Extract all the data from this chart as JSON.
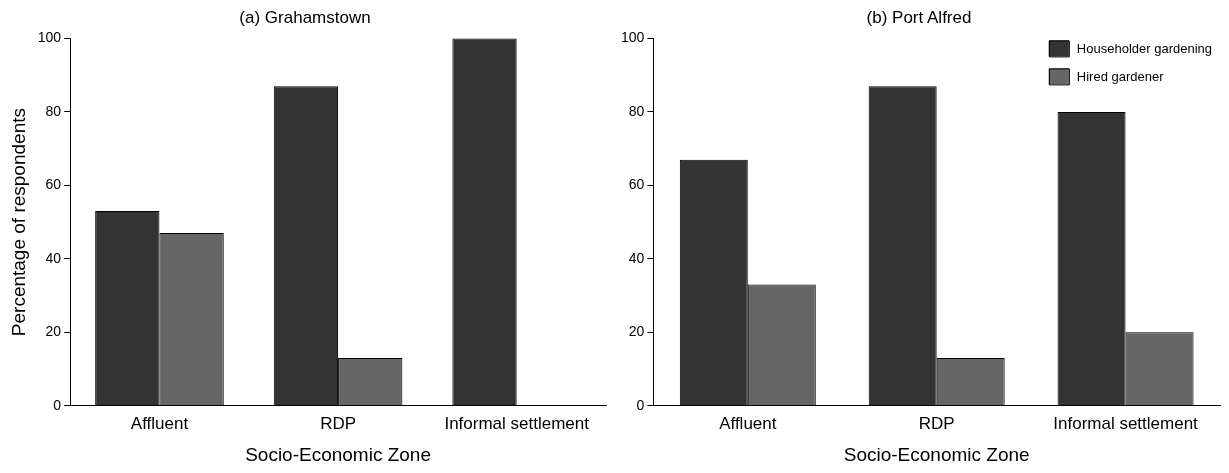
{
  "chart_data": [
    {
      "type": "bar",
      "title": "(a) Grahamstown",
      "xlabel": "Socio-Economic Zone",
      "ylabel": "Percentage of respondents",
      "categories": [
        "Affluent",
        "RDP",
        "Informal settlement"
      ],
      "series": [
        {
          "color": "#333333",
          "values": [
            53,
            87,
            100
          ]
        },
        {
          "color": "#666666",
          "values": [
            47,
            13,
            0
          ]
        }
      ],
      "ylim": [
        0,
        100
      ],
      "yticks": [
        0,
        20,
        40,
        60,
        80,
        100
      ],
      "grid": false,
      "legend": false
    },
    {
      "type": "bar",
      "title": "(b) Port Alfred",
      "xlabel": "Socio-Economic Zone",
      "categories": [
        "Affluent",
        "RDP",
        "Informal settlement"
      ],
      "series": [
        {
          "name": "Householder gardening",
          "color": "#333333",
          "values": [
            67,
            87,
            80
          ]
        },
        {
          "name": "Hired gardener",
          "color": "#666666",
          "values": [
            33,
            13,
            20
          ]
        }
      ],
      "ylim": [
        0,
        100
      ],
      "yticks": [
        0,
        20,
        40,
        60,
        80,
        100
      ],
      "grid": false,
      "legend": "top right"
    }
  ]
}
